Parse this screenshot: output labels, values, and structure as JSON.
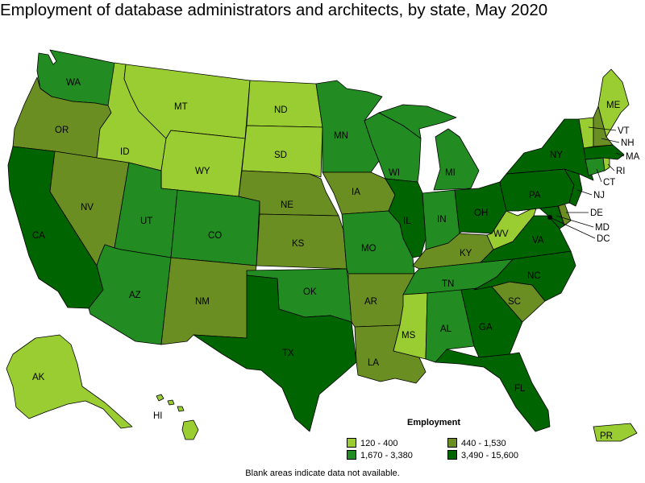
{
  "title": "Employment of database administrators and architects, by state, May 2020",
  "legend": {
    "title": "Employment",
    "items": [
      {
        "label": "120 - 400",
        "color": "#9acd32"
      },
      {
        "label": "440 - 1,530",
        "color": "#6b8e23"
      },
      {
        "label": "1,670 - 3,380",
        "color": "#228b22"
      },
      {
        "label": "3,490 - 15,600",
        "color": "#006400"
      }
    ]
  },
  "note": "Blank areas indicate data not available.",
  "states": [
    {
      "abbr": "WA",
      "bin": 2
    },
    {
      "abbr": "OR",
      "bin": 1
    },
    {
      "abbr": "CA",
      "bin": 3
    },
    {
      "abbr": "NV",
      "bin": 1
    },
    {
      "abbr": "ID",
      "bin": 0
    },
    {
      "abbr": "MT",
      "bin": 0
    },
    {
      "abbr": "WY",
      "bin": 0
    },
    {
      "abbr": "UT",
      "bin": 2
    },
    {
      "abbr": "AZ",
      "bin": 2
    },
    {
      "abbr": "CO",
      "bin": 2
    },
    {
      "abbr": "NM",
      "bin": 1
    },
    {
      "abbr": "ND",
      "bin": 0
    },
    {
      "abbr": "SD",
      "bin": 0
    },
    {
      "abbr": "NE",
      "bin": 1
    },
    {
      "abbr": "KS",
      "bin": 1
    },
    {
      "abbr": "OK",
      "bin": 2
    },
    {
      "abbr": "TX",
      "bin": 3
    },
    {
      "abbr": "MN",
      "bin": 2
    },
    {
      "abbr": "IA",
      "bin": 1
    },
    {
      "abbr": "MO",
      "bin": 2
    },
    {
      "abbr": "AR",
      "bin": 1
    },
    {
      "abbr": "LA",
      "bin": 1
    },
    {
      "abbr": "WI",
      "bin": 2
    },
    {
      "abbr": "IL",
      "bin": 3
    },
    {
      "abbr": "MI",
      "bin": 2
    },
    {
      "abbr": "IN",
      "bin": 2
    },
    {
      "abbr": "OH",
      "bin": 3
    },
    {
      "abbr": "KY",
      "bin": 1
    },
    {
      "abbr": "TN",
      "bin": 2
    },
    {
      "abbr": "MS",
      "bin": 0
    },
    {
      "abbr": "AL",
      "bin": 2
    },
    {
      "abbr": "GA",
      "bin": 3
    },
    {
      "abbr": "FL",
      "bin": 3
    },
    {
      "abbr": "SC",
      "bin": 1
    },
    {
      "abbr": "NC",
      "bin": 3
    },
    {
      "abbr": "VA",
      "bin": 3
    },
    {
      "abbr": "WV",
      "bin": 0
    },
    {
      "abbr": "MD",
      "bin": 3
    },
    {
      "abbr": "DE",
      "bin": 1
    },
    {
      "abbr": "DC",
      "bin": 3
    },
    {
      "abbr": "PA",
      "bin": 3
    },
    {
      "abbr": "NJ",
      "bin": 3
    },
    {
      "abbr": "NY",
      "bin": 3
    },
    {
      "abbr": "CT",
      "bin": 2
    },
    {
      "abbr": "RI",
      "bin": 0
    },
    {
      "abbr": "MA",
      "bin": 3
    },
    {
      "abbr": "VT",
      "bin": 0
    },
    {
      "abbr": "NH",
      "bin": 1
    },
    {
      "abbr": "ME",
      "bin": 0
    },
    {
      "abbr": "AK",
      "bin": 0
    },
    {
      "abbr": "HI",
      "bin": 0
    },
    {
      "abbr": "PR",
      "bin": 0
    }
  ]
}
